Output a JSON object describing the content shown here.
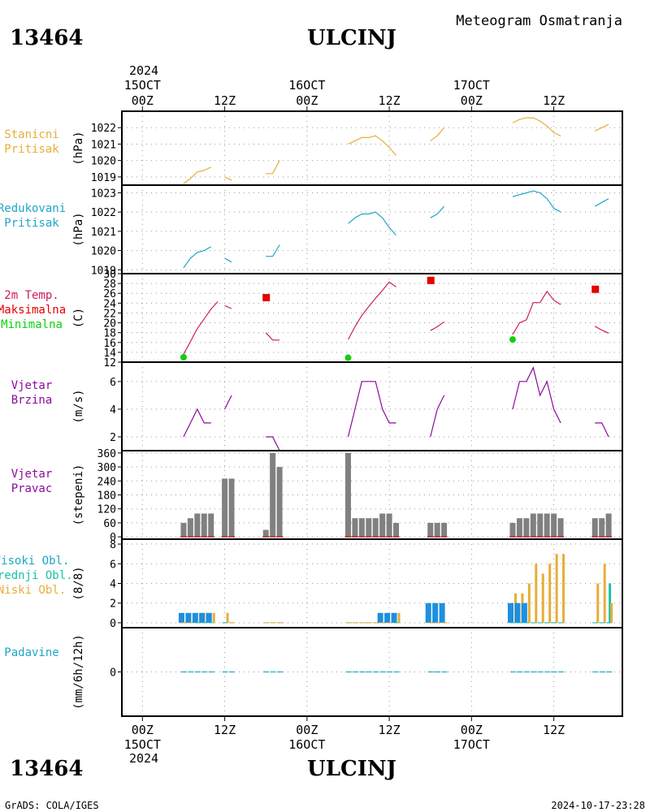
{
  "header": {
    "station_id": "13464",
    "station_name": "ULCINJ",
    "product": "Meteogram Osmatranja"
  },
  "footer": {
    "station_id": "13464",
    "station_name": "ULCINJ",
    "credit": "GrADS: COLA/IGES",
    "timestamp": "2024-10-17-23:28"
  },
  "time_axis": {
    "year": "2024",
    "start": "15OCT 00Z",
    "day_labels": [
      {
        "hour": 0,
        "label": "15OCT"
      },
      {
        "hour": 24,
        "label": "16OCT"
      },
      {
        "hour": 48,
        "label": "17OCT"
      }
    ],
    "hour_labels": [
      {
        "hour": 0,
        "label": "00Z"
      },
      {
        "hour": 12,
        "label": "12Z"
      },
      {
        "hour": 24,
        "label": "00Z"
      },
      {
        "hour": 36,
        "label": "12Z"
      },
      {
        "hour": 48,
        "label": "00Z"
      },
      {
        "hour": 60,
        "label": "12Z"
      }
    ],
    "range_hours": [
      -3,
      70
    ]
  },
  "colors": {
    "orange": "#e6ae3a",
    "cyan": "#1fa6c8",
    "purple": "#8c0a9c",
    "red": "#e60000",
    "green": "#0fd00f",
    "gray": "#808080",
    "blue": "#1e8fe0",
    "teal": "#16c4a4",
    "magenta": "#cc1c60"
  },
  "chart_data": [
    {
      "type": "line",
      "panel": "station_pressure",
      "labels": [
        "Stanicni",
        "Pritisak"
      ],
      "ylabel": "(hPa)",
      "ylim": [
        1018.5,
        1023
      ],
      "yticks": [
        1019,
        1020,
        1021,
        1022
      ],
      "series": [
        {
          "color": "orange",
          "segments": [
            [
              [
                6,
                1018.6
              ],
              [
                7,
                1018.9
              ],
              [
                8,
                1019.3
              ],
              [
                9,
                1019.4
              ],
              [
                10,
                1019.6
              ]
            ],
            [
              [
                12,
                1019.0
              ],
              [
                13,
                1018.8
              ]
            ],
            [
              [
                18,
                1019.2
              ],
              [
                19,
                1019.2
              ],
              [
                20,
                1020.0
              ]
            ],
            [
              [
                30,
                1021.0
              ],
              [
                31,
                1021.2
              ],
              [
                32,
                1021.4
              ],
              [
                33,
                1021.4
              ],
              [
                34,
                1021.5
              ],
              [
                35,
                1021.2
              ],
              [
                36,
                1020.8
              ],
              [
                37,
                1020.3
              ]
            ],
            [
              [
                42,
                1021.2
              ],
              [
                43,
                1021.5
              ],
              [
                44,
                1022.0
              ]
            ],
            [
              [
                54,
                1022.3
              ],
              [
                55,
                1022.5
              ],
              [
                56,
                1022.6
              ],
              [
                57,
                1022.6
              ],
              [
                58,
                1022.4
              ],
              [
                59,
                1022.1
              ],
              [
                60,
                1021.7
              ],
              [
                61,
                1021.5
              ]
            ],
            [
              [
                66,
                1021.8
              ],
              [
                67,
                1022.0
              ],
              [
                68,
                1022.2
              ]
            ]
          ]
        }
      ]
    },
    {
      "type": "line",
      "panel": "reduced_pressure",
      "labels": [
        "Redukovani",
        "Pritisak"
      ],
      "ylabel": "(hPa)",
      "ylim": [
        1018.8,
        1023.4
      ],
      "yticks": [
        1019,
        1020,
        1021,
        1022,
        1023
      ],
      "series": [
        {
          "color": "cyan",
          "segments": [
            [
              [
                6,
                1019.1
              ],
              [
                7,
                1019.6
              ],
              [
                8,
                1019.9
              ],
              [
                9,
                1020.0
              ],
              [
                10,
                1020.2
              ]
            ],
            [
              [
                12,
                1019.6
              ],
              [
                13,
                1019.4
              ]
            ],
            [
              [
                18,
                1019.7
              ],
              [
                19,
                1019.7
              ],
              [
                20,
                1020.3
              ]
            ],
            [
              [
                30,
                1021.4
              ],
              [
                31,
                1021.7
              ],
              [
                32,
                1021.9
              ],
              [
                33,
                1021.9
              ],
              [
                34,
                1022.0
              ],
              [
                35,
                1021.7
              ],
              [
                36,
                1021.2
              ],
              [
                37,
                1020.8
              ]
            ],
            [
              [
                42,
                1021.7
              ],
              [
                43,
                1021.9
              ],
              [
                44,
                1022.3
              ]
            ],
            [
              [
                54,
                1022.8
              ],
              [
                55,
                1022.9
              ],
              [
                56,
                1023.0
              ],
              [
                57,
                1023.1
              ],
              [
                58,
                1023.0
              ],
              [
                59,
                1022.7
              ],
              [
                60,
                1022.2
              ],
              [
                61,
                1022.0
              ]
            ],
            [
              [
                66,
                1022.3
              ],
              [
                67,
                1022.5
              ],
              [
                68,
                1022.7
              ]
            ]
          ]
        }
      ]
    },
    {
      "type": "line",
      "panel": "temperature",
      "labels": [
        "2m Temp.",
        "Maksimalna",
        "Minimalna"
      ],
      "label_colors": [
        "magenta",
        "red",
        "green"
      ],
      "ylabel": "(C)",
      "ylim": [
        12,
        30
      ],
      "yticks": [
        12,
        14,
        16,
        18,
        20,
        22,
        24,
        26,
        28,
        30
      ],
      "series": [
        {
          "color": "magenta",
          "segments": [
            [
              [
                6,
                13.6
              ],
              [
                7,
                16.2
              ],
              [
                8,
                18.8
              ],
              [
                9,
                20.8
              ],
              [
                10,
                22.8
              ],
              [
                11,
                24.3
              ]
            ],
            [
              [
                12,
                23.5
              ],
              [
                13,
                22.9
              ]
            ],
            [
              [
                18,
                18.0
              ],
              [
                19,
                16.5
              ],
              [
                20,
                16.5
              ]
            ],
            [
              [
                30,
                16.6
              ],
              [
                31,
                19.2
              ],
              [
                32,
                21.5
              ],
              [
                33,
                23.3
              ],
              [
                34,
                25.0
              ],
              [
                35,
                26.6
              ],
              [
                36,
                28.3
              ],
              [
                37,
                27.3
              ]
            ],
            [
              [
                42,
                18.4
              ],
              [
                43,
                19.2
              ],
              [
                44,
                20.2
              ]
            ],
            [
              [
                54,
                17.6
              ],
              [
                55,
                20.0
              ],
              [
                56,
                20.6
              ],
              [
                57,
                24.1
              ],
              [
                58,
                24.1
              ],
              [
                59,
                26.4
              ],
              [
                60,
                24.6
              ],
              [
                61,
                23.7
              ]
            ],
            [
              [
                66,
                19.3
              ],
              [
                67,
                18.5
              ],
              [
                68,
                17.9
              ]
            ]
          ]
        }
      ],
      "markers_max": [
        [
          18,
          25.2
        ],
        [
          42,
          28.7
        ],
        [
          66,
          26.9
        ]
      ],
      "markers_min": [
        [
          6,
          13.0
        ],
        [
          30,
          12.9
        ],
        [
          54,
          16.6
        ]
      ]
    },
    {
      "type": "line",
      "panel": "wind_speed",
      "labels": [
        "Vjetar",
        "Brzina"
      ],
      "ylabel": "(m/s)",
      "ylim": [
        1,
        7.4
      ],
      "yticks": [
        2,
        4,
        6
      ],
      "series": [
        {
          "color": "purple",
          "segments": [
            [
              [
                6,
                2
              ],
              [
                7,
                3
              ],
              [
                8,
                4
              ],
              [
                9,
                3
              ],
              [
                10,
                3
              ]
            ],
            [
              [
                12,
                4
              ],
              [
                13,
                5
              ]
            ],
            [
              [
                18,
                2
              ],
              [
                19,
                2
              ],
              [
                20,
                1
              ]
            ],
            [
              [
                30,
                2
              ],
              [
                31,
                4
              ],
              [
                32,
                6
              ],
              [
                33,
                6
              ],
              [
                34,
                6
              ],
              [
                35,
                4
              ],
              [
                36,
                3
              ],
              [
                37,
                3
              ]
            ],
            [
              [
                42,
                2
              ],
              [
                43,
                4
              ],
              [
                44,
                5
              ]
            ],
            [
              [
                54,
                4
              ],
              [
                55,
                6
              ],
              [
                56,
                6
              ],
              [
                57,
                7
              ],
              [
                58,
                5
              ],
              [
                59,
                6
              ],
              [
                60,
                4
              ],
              [
                61,
                3
              ]
            ],
            [
              [
                66,
                3
              ],
              [
                67,
                3
              ],
              [
                68,
                2
              ]
            ]
          ]
        }
      ]
    },
    {
      "type": "bar",
      "panel": "wind_direction",
      "labels": [
        "Vjetar",
        "Pravac"
      ],
      "ylabel": "(stepeni)",
      "ylim": [
        -10,
        370
      ],
      "yticks": [
        0,
        60,
        120,
        180,
        240,
        300,
        360
      ],
      "x": [
        6,
        7,
        8,
        9,
        10,
        12,
        13,
        18,
        19,
        20,
        30,
        31,
        32,
        33,
        34,
        35,
        36,
        37,
        42,
        43,
        44,
        54,
        55,
        56,
        57,
        58,
        59,
        60,
        61,
        66,
        67,
        68
      ],
      "values": [
        60,
        80,
        100,
        100,
        100,
        250,
        250,
        30,
        360,
        300,
        360,
        80,
        80,
        80,
        80,
        100,
        100,
        60,
        60,
        60,
        60,
        60,
        80,
        80,
        100,
        100,
        100,
        100,
        80,
        80,
        80,
        100
      ]
    },
    {
      "type": "bar",
      "panel": "clouds",
      "labels": [
        "Visoki Obl.",
        "Srednji Obl.",
        "Niski Obl."
      ],
      "label_colors": [
        "cyan",
        "teal",
        "orange"
      ],
      "ylabel": "(8/8)",
      "ylim": [
        -0.5,
        8.5
      ],
      "yticks": [
        0,
        2,
        4,
        6,
        8
      ],
      "x": [
        6,
        7,
        8,
        9,
        10,
        12,
        13,
        18,
        19,
        20,
        30,
        31,
        32,
        33,
        34,
        35,
        36,
        37,
        42,
        43,
        44,
        54,
        55,
        56,
        57,
        58,
        59,
        60,
        61,
        66,
        67,
        68
      ],
      "series": [
        {
          "name": "Visoki Obl.",
          "color": "blue",
          "values": [
            1,
            1,
            1,
            1,
            1,
            0,
            0,
            0,
            0,
            0,
            0,
            0,
            0,
            0,
            0,
            1,
            1,
            1,
            2,
            2,
            2,
            2,
            2,
            2,
            0,
            0,
            0,
            0,
            0,
            0,
            0,
            0
          ]
        },
        {
          "name": "Srednji Obl.",
          "color": "teal",
          "values": [
            0,
            0,
            0,
            0,
            0,
            0,
            0,
            0,
            0,
            0,
            0,
            0,
            0,
            0,
            0,
            0,
            0,
            0,
            0,
            0,
            0,
            0,
            0,
            0,
            0,
            0,
            0,
            0,
            0,
            0,
            0,
            4
          ]
        },
        {
          "name": "Niski Obl.",
          "color": "orange",
          "values": [
            0,
            0,
            1,
            1,
            1,
            1,
            0,
            0,
            0,
            0,
            0,
            0,
            0,
            0,
            0,
            0,
            0,
            1,
            0,
            0,
            0,
            3,
            3,
            4,
            6,
            5,
            6,
            7,
            7,
            4,
            6,
            2
          ]
        }
      ]
    },
    {
      "type": "bar",
      "panel": "precipitation",
      "labels": [
        "Padavine"
      ],
      "ylabel": "(mm/6h/12h)",
      "ylim": [
        -1,
        1
      ],
      "yticks": [
        0
      ],
      "x": [
        6,
        7,
        8,
        9,
        10,
        12,
        13,
        18,
        19,
        20,
        30,
        31,
        32,
        33,
        34,
        35,
        36,
        37,
        42,
        43,
        44,
        54,
        55,
        56,
        57,
        58,
        59,
        60,
        61,
        66,
        67,
        68
      ],
      "values": [
        0,
        0,
        0,
        0,
        0,
        0,
        0,
        0,
        0,
        0,
        0,
        0,
        0,
        0,
        0,
        0,
        0,
        0,
        0,
        0,
        0,
        0,
        0,
        0,
        0,
        0,
        0,
        0,
        0,
        0,
        0,
        0
      ]
    }
  ]
}
